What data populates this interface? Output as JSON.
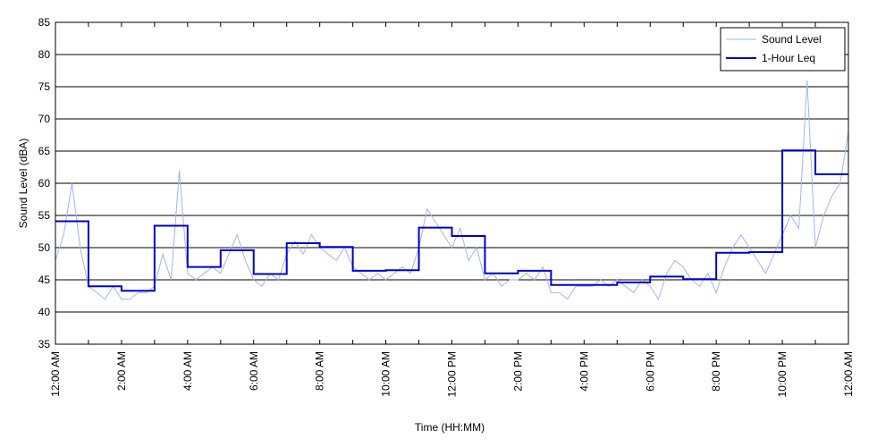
{
  "chart_data": {
    "type": "line",
    "x_label": "Time (HH:MM)",
    "y_label": "Sound Level (dBA)",
    "xlim": [
      0,
      24
    ],
    "ylim": [
      35,
      85
    ],
    "yticks": [
      35,
      40,
      45,
      50,
      55,
      60,
      65,
      70,
      75,
      80,
      85
    ],
    "xticks": [
      {
        "value": 0,
        "label": "12:00 AM"
      },
      {
        "value": 2,
        "label": "2:00 AM"
      },
      {
        "value": 4,
        "label": "4:00 AM"
      },
      {
        "value": 6,
        "label": "6:00 AM"
      },
      {
        "value": 8,
        "label": "8:00 AM"
      },
      {
        "value": 10,
        "label": "10:00 AM"
      },
      {
        "value": 12,
        "label": "12:00 PM"
      },
      {
        "value": 14,
        "label": "2:00 PM"
      },
      {
        "value": 16,
        "label": "4:00 PM"
      },
      {
        "value": 18,
        "label": "6:00 PM"
      },
      {
        "value": 20,
        "label": "8:00 PM"
      },
      {
        "value": 22,
        "label": "10:00 PM"
      },
      {
        "value": 24,
        "label": "12:00 AM"
      }
    ],
    "xminorticks": [
      1,
      3,
      5,
      7,
      9,
      11,
      13,
      15,
      17,
      19,
      21,
      23
    ],
    "grid": true,
    "legend": "upper right",
    "series": [
      {
        "name": "Sound Level",
        "color": "#9db7ef",
        "step": false,
        "x": [
          0,
          0.25,
          0.5,
          0.75,
          1,
          1.25,
          1.5,
          1.75,
          2,
          2.25,
          2.5,
          2.75,
          3,
          3.25,
          3.5,
          3.75,
          4,
          4.25,
          4.5,
          4.75,
          5,
          5.25,
          5.5,
          5.75,
          6,
          6.25,
          6.5,
          6.75,
          7,
          7.25,
          7.5,
          7.75,
          8,
          8.25,
          8.5,
          8.75,
          9,
          9.25,
          9.5,
          9.75,
          10,
          10.25,
          10.5,
          10.75,
          11,
          11.25,
          11.5,
          11.75,
          12,
          12.25,
          12.5,
          12.75,
          13,
          13.25,
          13.5,
          13.75,
          14,
          14.25,
          14.5,
          14.75,
          15,
          15.25,
          15.5,
          15.75,
          16,
          16.25,
          16.5,
          16.75,
          17,
          17.25,
          17.5,
          17.75,
          18,
          18.25,
          18.5,
          18.75,
          19,
          19.25,
          19.5,
          19.75,
          20,
          20.25,
          20.5,
          20.75,
          21,
          21.25,
          21.5,
          21.75,
          22,
          22.25,
          22.5,
          22.75,
          23,
          23.25,
          23.5,
          23.75,
          24
        ],
        "values": [
          48,
          52,
          60,
          50,
          44,
          43,
          42,
          44,
          42,
          42,
          43,
          43,
          44,
          49,
          45,
          62,
          46,
          45,
          46,
          47,
          46,
          49,
          52,
          48,
          45,
          44,
          46,
          45,
          49,
          51,
          49,
          52,
          50,
          49,
          48,
          50,
          47,
          46,
          45,
          46,
          45,
          46,
          47,
          46,
          50,
          56,
          54,
          52,
          50,
          53,
          48,
          50,
          45,
          46,
          44,
          45,
          45,
          46,
          45,
          47,
          43,
          43,
          42,
          44,
          44,
          44,
          45,
          44,
          45,
          44,
          43,
          45,
          44,
          42,
          46,
          48,
          47,
          45,
          44,
          46,
          43,
          47,
          50,
          52,
          50,
          48,
          46,
          49,
          52,
          55,
          53,
          76,
          50,
          55,
          58,
          60,
          68
        ]
      },
      {
        "name": "1-Hour Leq",
        "color": "#0000d0",
        "step": true,
        "x": [
          0,
          1,
          2,
          3,
          4,
          5,
          6,
          7,
          8,
          9,
          10,
          11,
          12,
          13,
          14,
          15,
          16,
          17,
          18,
          19,
          20,
          21,
          22,
          23
        ],
        "values": [
          54.1,
          44.0,
          43.3,
          53.4,
          47.0,
          49.6,
          45.9,
          50.7,
          50.1,
          46.4,
          46.5,
          53.1,
          51.8,
          46.0,
          46.4,
          44.2,
          44.2,
          44.6,
          45.5,
          45.1,
          49.2,
          49.3,
          65.1,
          61.4
        ]
      }
    ]
  }
}
